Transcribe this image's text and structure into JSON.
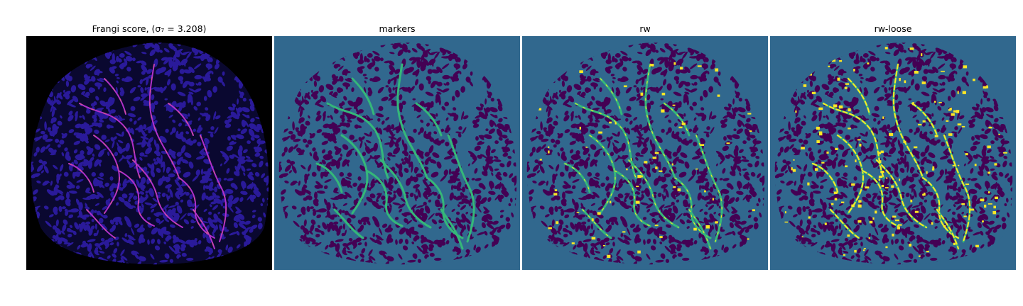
{
  "panels": [
    {
      "key": "frangi",
      "title": "Frangi score, (σ₇ = 3.208)",
      "colormap": "magma",
      "background": "#000000",
      "blob": "#2a1a9a",
      "vessel": "#b030c8",
      "highlight": "#f07070"
    },
    {
      "key": "markers",
      "title": "markers",
      "colormap": "viridis",
      "background": "#31688e",
      "blob": "#440154",
      "vessel": "#35b779",
      "highlight": "#35b779"
    },
    {
      "key": "rw",
      "title": "rw",
      "colormap": "viridis",
      "background": "#31688e",
      "blob": "#440154",
      "vessel": "#35b779",
      "highlight": "#fde725"
    },
    {
      "key": "rwloose",
      "title": "rw-loose",
      "colormap": "viridis",
      "background": "#31688e",
      "blob": "#440154",
      "vessel": "#35b779",
      "highlight": "#fde725"
    }
  ]
}
